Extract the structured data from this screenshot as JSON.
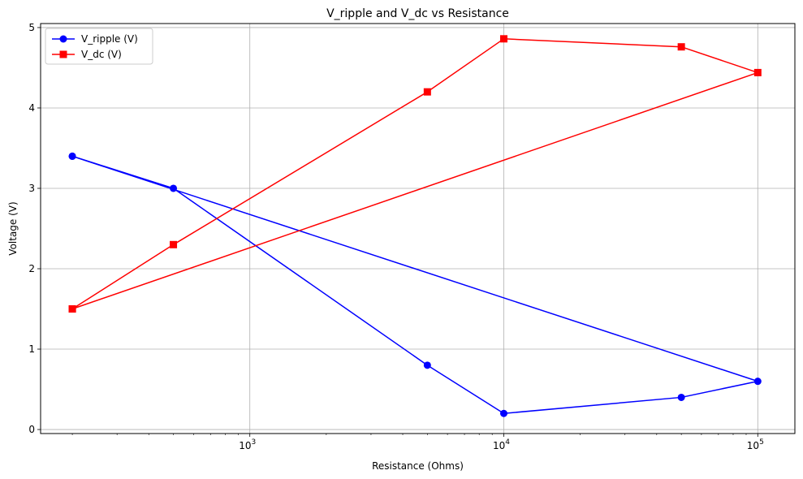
{
  "chart_data": {
    "type": "line",
    "title": "V_ripple and V_dc vs Resistance",
    "xlabel": "Resistance (Ohms)",
    "ylabel": "Voltage (V)",
    "xscale": "log",
    "xlim": [
      150,
      140000
    ],
    "ylim": [
      -0.05,
      5.05
    ],
    "x_ticks": [
      {
        "value": 1000,
        "base": "10",
        "exp": "3"
      },
      {
        "value": 10000,
        "base": "10",
        "exp": "4"
      },
      {
        "value": 100000,
        "base": "10",
        "exp": "5"
      }
    ],
    "y_ticks": [
      {
        "value": 0,
        "label": "0"
      },
      {
        "value": 1,
        "label": "1"
      },
      {
        "value": 2,
        "label": "2"
      },
      {
        "value": 3,
        "label": "3"
      },
      {
        "value": 4,
        "label": "4"
      },
      {
        "value": 5,
        "label": "5"
      }
    ],
    "grid": true,
    "legend_position": "top-left",
    "series": [
      {
        "name": "V_ripple (V)",
        "color": "#0000ff",
        "marker": "circle",
        "x": [
          200,
          500,
          5000,
          10000,
          50000,
          100000,
          200
        ],
        "y": [
          3.4,
          3.0,
          0.8,
          0.2,
          0.4,
          0.6,
          3.4
        ]
      },
      {
        "name": "V_dc (V)",
        "color": "#ff0000",
        "marker": "square",
        "x": [
          200,
          500,
          5000,
          10000,
          50000,
          100000,
          200
        ],
        "y": [
          1.5,
          2.3,
          4.2,
          4.86,
          4.76,
          4.44,
          1.5
        ]
      }
    ]
  }
}
